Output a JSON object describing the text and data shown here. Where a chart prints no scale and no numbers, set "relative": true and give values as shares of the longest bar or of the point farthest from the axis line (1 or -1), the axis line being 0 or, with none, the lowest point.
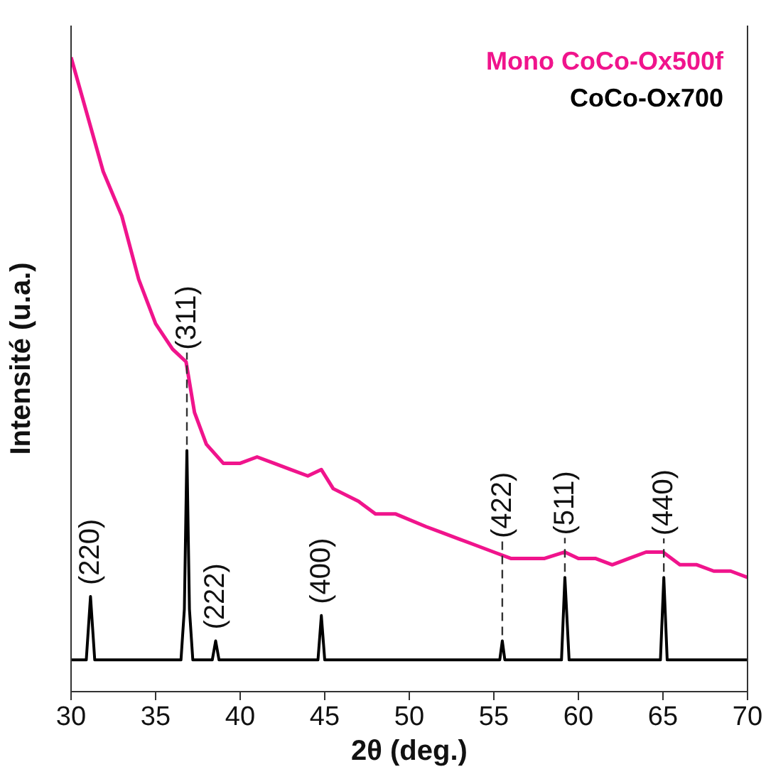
{
  "chart_data": {
    "type": "line",
    "relative": true,
    "xlabel": "2θ (deg.)",
    "ylabel": "Intensité (u.a.)",
    "xlim": [
      30,
      70
    ],
    "xticks": [
      30,
      35,
      40,
      45,
      50,
      55,
      60,
      65,
      70
    ],
    "legend": "top right",
    "marker": "none",
    "series": [
      {
        "name": "Mono CoCo-Ox500f",
        "color": "#f0148c",
        "x": [
          30,
          31.9,
          33,
          34,
          35,
          36,
          36.8,
          37.3,
          38,
          39,
          40,
          41,
          42,
          43,
          44,
          44.8,
          45.5,
          47,
          48,
          49.2,
          51,
          52,
          53,
          54,
          55,
          56,
          57,
          58,
          59.2,
          60,
          61,
          62,
          63,
          64,
          65,
          66,
          67,
          68,
          69,
          70
        ],
        "values": [
          1.0,
          0.82,
          0.75,
          0.65,
          0.58,
          0.54,
          0.52,
          0.44,
          0.39,
          0.36,
          0.36,
          0.37,
          0.36,
          0.35,
          0.34,
          0.35,
          0.32,
          0.3,
          0.28,
          0.28,
          0.26,
          0.25,
          0.24,
          0.23,
          0.22,
          0.21,
          0.21,
          0.21,
          0.22,
          0.21,
          0.21,
          0.2,
          0.21,
          0.22,
          0.22,
          0.2,
          0.2,
          0.19,
          0.19,
          0.18
        ]
      },
      {
        "name": "CoCo-Ox700",
        "color": "#000000",
        "x": [
          30,
          30.9,
          31.15,
          31.4,
          36.5,
          36.7,
          36.85,
          37.0,
          37.2,
          38.35,
          38.55,
          38.75,
          44.6,
          44.8,
          45.0,
          55.35,
          55.5,
          55.65,
          59.0,
          59.2,
          59.45,
          64.85,
          65.05,
          65.25,
          70
        ],
        "values": [
          0.05,
          0.05,
          0.15,
          0.05,
          0.05,
          0.13,
          0.38,
          0.13,
          0.05,
          0.05,
          0.08,
          0.05,
          0.05,
          0.12,
          0.05,
          0.05,
          0.08,
          0.05,
          0.05,
          0.18,
          0.05,
          0.05,
          0.18,
          0.05,
          0.05
        ]
      }
    ],
    "annotations": [
      {
        "text": "(220)",
        "x": 31.15,
        "y": 0.15
      },
      {
        "text": "(311)",
        "x": 36.85,
        "y": 0.38
      },
      {
        "text": "(222)",
        "x": 38.55,
        "y": 0.08
      },
      {
        "text": "(400)",
        "x": 44.8,
        "y": 0.12
      },
      {
        "text": "(422)",
        "x": 55.5,
        "y": 0.08
      },
      {
        "text": "(511)",
        "x": 59.2,
        "y": 0.18
      },
      {
        "text": "(440)",
        "x": 65.05,
        "y": 0.18
      }
    ]
  }
}
